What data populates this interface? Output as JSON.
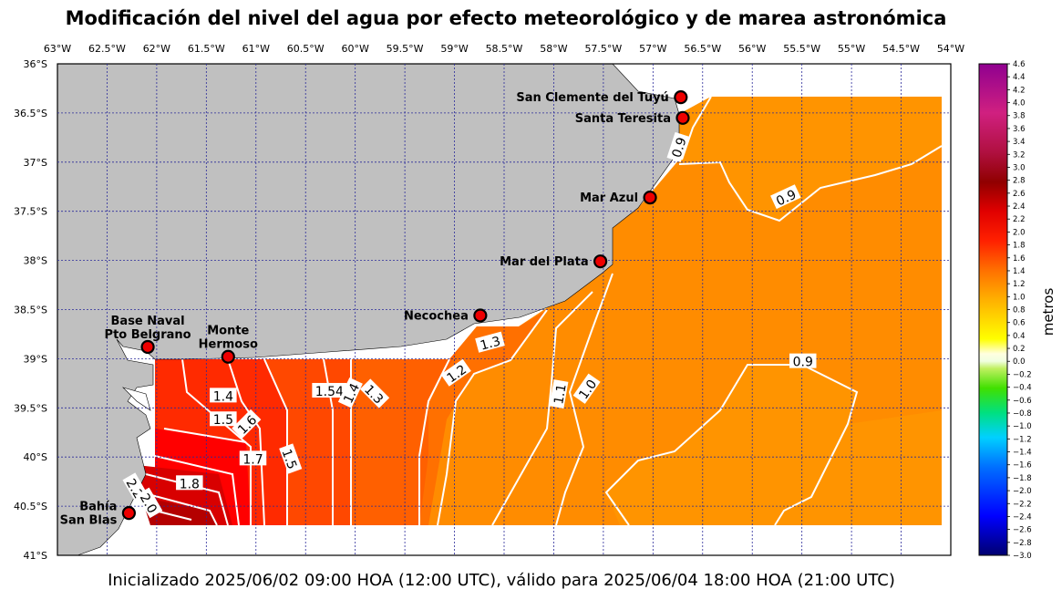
{
  "title": "Modificación del nivel del agua por efecto meteorológico y de marea astronómica",
  "footer": "Inicializado 2025/06/02 09:00 HOA (12:00 UTC), válido para 2025/06/04 18:00 HOA (21:00 UTC)",
  "colorbar": {
    "label": "metros",
    "min": -3.0,
    "max": 4.6,
    "ticks": [
      "4.6",
      "4.4",
      "4.2",
      "4.0",
      "3.8",
      "3.6",
      "3.4",
      "3.2",
      "3.0",
      "2.8",
      "2.6",
      "2.4",
      "2.2",
      "2.0",
      "1.8",
      "1.6",
      "1.4",
      "1.2",
      "1.0",
      "0.8",
      "0.6",
      "0.4",
      "0.2",
      "0.0",
      "−0.2",
      "−0.4",
      "−0.6",
      "−0.8",
      "−1.0",
      "−1.2",
      "−1.4",
      "−1.6",
      "−1.8",
      "−2.0",
      "−2.2",
      "−2.4",
      "−2.6",
      "−2.8",
      "−3.0"
    ]
  },
  "axes": {
    "lon_labels": [
      "63°W",
      "62.5°W",
      "62°W",
      "61.5°W",
      "61°W",
      "60.5°W",
      "60°W",
      "59.5°W",
      "59°W",
      "58.5°W",
      "58°W",
      "57.5°W",
      "57°W",
      "56.5°W",
      "56°W",
      "55.5°W",
      "55°W",
      "54.5°W",
      "54°W"
    ],
    "lat_labels": [
      "36°S",
      "36.5°S",
      "37°S",
      "37.5°S",
      "38°S",
      "38.5°S",
      "39°S",
      "39.5°S",
      "40°S",
      "40.5°S",
      "41°S"
    ],
    "lon_range": [
      -63,
      -54
    ],
    "lat_range": [
      -41,
      -36
    ]
  },
  "stations": [
    {
      "name": "San Clemente del Tuyú",
      "lines": [
        "San Clemente del Tuyú"
      ],
      "lon": -56.72,
      "lat": -36.34,
      "anchor": "end"
    },
    {
      "name": "Santa Teresita",
      "lines": [
        "Santa Teresita"
      ],
      "lon": -56.7,
      "lat": -36.55,
      "anchor": "end"
    },
    {
      "name": "Mar Azul",
      "lines": [
        "Mar Azul"
      ],
      "lon": -57.03,
      "lat": -37.36,
      "anchor": "end"
    },
    {
      "name": "Mar del Plata",
      "lines": [
        "Mar del Plata"
      ],
      "lon": -57.53,
      "lat": -38.01,
      "anchor": "end"
    },
    {
      "name": "Necochea",
      "lines": [
        "Necochea"
      ],
      "lon": -58.74,
      "lat": -38.56,
      "anchor": "end"
    },
    {
      "name": "Base Naval Pto Belgrano",
      "lines": [
        "Base Naval",
        "Pto Belgrano"
      ],
      "lon": -62.09,
      "lat": -38.88,
      "anchor": "middle"
    },
    {
      "name": "Monte Hermoso",
      "lines": [
        "Monte",
        "Hermoso"
      ],
      "lon": -61.28,
      "lat": -38.98,
      "anchor": "middle"
    },
    {
      "name": "Bahía San Blas",
      "lines": [
        "Bahía",
        "San Blas"
      ],
      "lon": -62.28,
      "lat": -40.57,
      "anchor": "end"
    }
  ],
  "contour_labels": [
    {
      "text": "0.9",
      "lon": -56.74,
      "lat": -36.85,
      "rot": -72
    },
    {
      "text": "0.9",
      "lon": -55.66,
      "lat": -37.36,
      "rot": -25
    },
    {
      "text": "0.9",
      "lon": -55.49,
      "lat": -39.03,
      "rot": 0
    },
    {
      "text": "1.3",
      "lon": -58.64,
      "lat": -38.84,
      "rot": -15
    },
    {
      "text": "1.2",
      "lon": -58.98,
      "lat": -39.15,
      "rot": -35
    },
    {
      "text": "1.1",
      "lon": -57.94,
      "lat": -39.36,
      "rot": -80
    },
    {
      "text": "1.0",
      "lon": -57.66,
      "lat": -39.31,
      "rot": -55
    },
    {
      "text": "1.4",
      "lon": -61.33,
      "lat": -39.38,
      "rot": 0
    },
    {
      "text": "1.5",
      "lon": -61.33,
      "lat": -39.62,
      "rot": 0
    },
    {
      "text": "1.6",
      "lon": -61.09,
      "lat": -39.67,
      "rot": -45
    },
    {
      "text": "1.7",
      "lon": -61.03,
      "lat": -40.02,
      "rot": 0
    },
    {
      "text": "1.5",
      "lon": -60.66,
      "lat": -40.02,
      "rot": 70
    },
    {
      "text": "1.8",
      "lon": -61.67,
      "lat": -40.27,
      "rot": 0
    },
    {
      "text": "1.54",
      "lon": -60.26,
      "lat": -39.33,
      "rot": 0
    },
    {
      "text": "1.4",
      "lon": -60.04,
      "lat": -39.35,
      "rot": -65
    },
    {
      "text": "1.3",
      "lon": -59.81,
      "lat": -39.36,
      "rot": 45
    },
    {
      "text": "2.2",
      "lon": -62.22,
      "lat": -40.32,
      "rot": 60
    },
    {
      "text": "2.0",
      "lon": -62.08,
      "lat": -40.47,
      "rot": 60
    }
  ]
}
